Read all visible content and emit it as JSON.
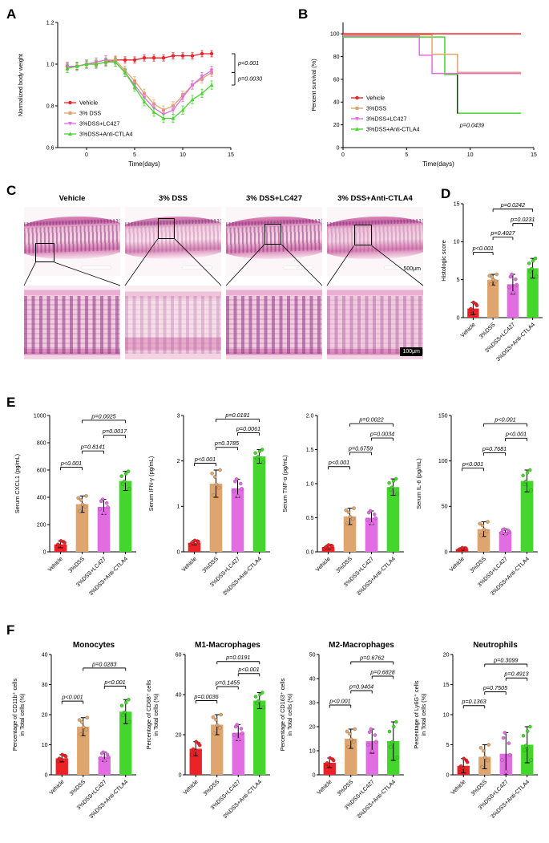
{
  "figure": {
    "panel_labels": [
      "A",
      "B",
      "C",
      "D",
      "E",
      "F"
    ],
    "groups": [
      {
        "label": "Vehicle",
        "color": "#EB2227"
      },
      {
        "label": "3%DSS",
        "color": "#DFA56E"
      },
      {
        "label": "3%DSS+LC427",
        "color": "#E26CE2"
      },
      {
        "label": "3%DSS+Anti-CTLA4",
        "color": "#44D62C"
      }
    ]
  },
  "panelC": {
    "column_titles": [
      "Vehicle",
      "3% DSS",
      "3% DSS+LC427",
      "3% DSS+Anti-CTLA4"
    ],
    "scalebar_top": "500μm",
    "scalebar_bottom": "100μm"
  },
  "chart_data": [
    {
      "id": "bodyweight",
      "type": "line",
      "title": "",
      "xlabel": "Time(days)",
      "ylabel": "Normalized body weight",
      "xlim": [
        -3,
        15
      ],
      "ylim": [
        0.6,
        1.2
      ],
      "xticks": [
        0,
        5,
        10,
        15
      ],
      "yticks": [
        0.6,
        0.8,
        1,
        1.2
      ],
      "ytick_labels": [
        "0.6",
        "0.8",
        "1.0",
        "1.2"
      ],
      "m": {
        "l": 54,
        "r": 62,
        "t": 14,
        "b": 38
      },
      "x": [
        -2,
        -1,
        0,
        1,
        2,
        3,
        4,
        5,
        6,
        7,
        8,
        9,
        10,
        11,
        12,
        13
      ],
      "series": [
        {
          "name": "Vehicle",
          "marker": "circle",
          "err": 0.015,
          "values": [
            0.99,
            0.99,
            1,
            1,
            1.01,
            1.02,
            1.02,
            1.02,
            1.03,
            1.03,
            1.03,
            1.04,
            1.04,
            1.04,
            1.05,
            1.05
          ]
        },
        {
          "name": "3% DSS",
          "marker": "square",
          "err": 0.02,
          "values": [
            0.98,
            0.99,
            1,
            1.01,
            1.02,
            1.02,
            0.97,
            0.92,
            0.86,
            0.81,
            0.78,
            0.8,
            0.85,
            0.9,
            0.93,
            0.96
          ]
        },
        {
          "name": "3%DSS+LC427",
          "marker": "triangle-down",
          "err": 0.02,
          "values": [
            0.99,
            0.99,
            1,
            1.01,
            1.02,
            1.01,
            0.96,
            0.9,
            0.84,
            0.79,
            0.76,
            0.78,
            0.84,
            0.9,
            0.94,
            0.97
          ]
        },
        {
          "name": "3%DSS+Anti-CTLA4",
          "marker": "triangle-up",
          "err": 0.02,
          "values": [
            0.98,
            0.99,
            1,
            1,
            1.01,
            1.01,
            0.96,
            0.89,
            0.82,
            0.77,
            0.74,
            0.74,
            0.78,
            0.83,
            0.86,
            0.9
          ]
        }
      ],
      "right_brackets": [
        {
          "y_top": 1.05,
          "y_bottom": 0.96,
          "label": "p<0.001"
        },
        {
          "y_top": 0.96,
          "y_bottom": 0.9,
          "label": "p=0.0030"
        }
      ],
      "legend": {
        "items": [
          "Vehicle",
          "3% DSS",
          "3%DSS+LC427",
          "3%DSS+Anti-CTLA4"
        ]
      }
    },
    {
      "id": "survival",
      "type": "step",
      "xlabel": "Time(days)",
      "ylabel": "Percent survival (%)",
      "xlim": [
        0,
        15
      ],
      "ylim": [
        0,
        110
      ],
      "xticks": [
        0,
        5,
        10,
        15
      ],
      "yticks": [
        0,
        20,
        40,
        60,
        80,
        100
      ],
      "m": {
        "l": 44,
        "r": 16,
        "t": 14,
        "b": 38
      },
      "series": [
        {
          "name": "Vehicle",
          "points": [
            [
              0,
              100
            ],
            [
              14,
              100
            ]
          ]
        },
        {
          "name": "3%DSS",
          "points": [
            [
              0,
              100
            ],
            [
              7,
              100
            ],
            [
              7,
              83
            ],
            [
              9,
              83
            ],
            [
              9,
              67
            ],
            [
              14,
              67
            ]
          ]
        },
        {
          "name": "3%DSS+LC427",
          "points": [
            [
              0,
              100
            ],
            [
              6,
              100
            ],
            [
              6,
              83
            ],
            [
              7,
              83
            ],
            [
              7,
              67
            ],
            [
              14,
              67
            ]
          ]
        },
        {
          "name": "3%DSS+Anti-CTLA4",
          "points": [
            [
              0,
              100
            ],
            [
              8,
              100
            ],
            [
              8,
              67
            ],
            [
              9,
              67
            ],
            [
              9,
              33
            ],
            [
              14,
              33
            ]
          ]
        }
      ],
      "annotation": {
        "x": 9,
        "y1": 30,
        "y2": 64,
        "label": "p=0.0439",
        "label_y": 18
      },
      "legend": {
        "items": [
          "Vehicle",
          "3%DSS",
          "3%DSS+LC427",
          "3%DSS+Anti-CTLA4"
        ]
      }
    },
    {
      "id": "histoscore",
      "type": "bar",
      "ylabel": "Histologic score",
      "ylim": [
        0,
        15
      ],
      "yticks": [
        0,
        5,
        10,
        15
      ],
      "m": {
        "l": 32,
        "r": 8,
        "t": 8,
        "b": 74
      },
      "categories": [
        "Vehicle",
        "3%DSS",
        "3%DSS+LC427",
        "3%DSS+Anti-CTLA4"
      ],
      "values": [
        1.2,
        5,
        4.4,
        6.5
      ],
      "errors": [
        0.8,
        0.7,
        1.3,
        1.3
      ],
      "brackets": [
        {
          "from": 0,
          "to": 1,
          "y": 8.6,
          "label": "p<0.001"
        },
        {
          "from": 1,
          "to": 2,
          "y": 10.6,
          "label": "p=0.4027"
        },
        {
          "from": 2,
          "to": 3,
          "y": 12.4,
          "label": "p=0.0231"
        },
        {
          "from": 1,
          "to": 3,
          "y": 14.3,
          "label": "p=0.0242"
        }
      ]
    },
    {
      "id": "cxcl1",
      "type": "bar",
      "ylabel": "Serum CXCL1 (pg/mL)",
      "ylim": [
        0,
        1000
      ],
      "yticks": [
        0,
        200,
        400,
        600,
        800,
        1000
      ],
      "m": {
        "l": 48,
        "r": 10,
        "t": 10,
        "b": 78
      },
      "categories": [
        "Vehicle",
        "3%DSS",
        "3%DSS+LC427",
        "3%DSS+Anti-CTLA4"
      ],
      "values": [
        55,
        350,
        330,
        520
      ],
      "errors": [
        25,
        60,
        55,
        70
      ],
      "brackets": [
        {
          "from": 0,
          "to": 1,
          "y": 620,
          "label": "p<0.001"
        },
        {
          "from": 1,
          "to": 2,
          "y": 740,
          "label": "p=0.8141"
        },
        {
          "from": 2,
          "to": 3,
          "y": 855,
          "label": "p=0.0017"
        },
        {
          "from": 1,
          "to": 3,
          "y": 965,
          "label": "p=0.0025"
        }
      ]
    },
    {
      "id": "ifng",
      "type": "bar",
      "ylabel": "Serum IFN-γ (pg/mL)",
      "ylim": [
        0,
        3
      ],
      "yticks": [
        0,
        1,
        2,
        3
      ],
      "m": {
        "l": 48,
        "r": 10,
        "t": 10,
        "b": 78
      },
      "categories": [
        "Vehicle",
        "3%DSS",
        "3%DSS+LC427",
        "3%DSS+Anti-CTLA4"
      ],
      "values": [
        0.2,
        1.5,
        1.4,
        2.1
      ],
      "errors": [
        0.05,
        0.3,
        0.2,
        0.15
      ],
      "brackets": [
        {
          "from": 0,
          "to": 1,
          "y": 1.95,
          "label": "p<0.001"
        },
        {
          "from": 1,
          "to": 2,
          "y": 2.3,
          "label": "p=0.3785"
        },
        {
          "from": 2,
          "to": 3,
          "y": 2.62,
          "label": "p=0.0061"
        },
        {
          "from": 1,
          "to": 3,
          "y": 2.92,
          "label": "p=0.0181"
        }
      ]
    },
    {
      "id": "tnfa",
      "type": "bar",
      "ylabel": "Serum TNF-α (pg/mL)",
      "ylim": [
        0,
        2
      ],
      "yticks": [
        0,
        0.5,
        1,
        1.5,
        2
      ],
      "ytick_labels": [
        "0.0",
        "0.5",
        "1.0",
        "1.5",
        "2.0"
      ],
      "m": {
        "l": 48,
        "r": 10,
        "t": 10,
        "b": 78
      },
      "categories": [
        "Vehicle",
        "3%DSS",
        "3%DSS+LC427",
        "3%DSS+Anti-CTLA4"
      ],
      "values": [
        0.07,
        0.52,
        0.5,
        0.95
      ],
      "errors": [
        0.03,
        0.12,
        0.1,
        0.12
      ],
      "brackets": [
        {
          "from": 0,
          "to": 1,
          "y": 1.25,
          "label": "p<0.001"
        },
        {
          "from": 1,
          "to": 2,
          "y": 1.46,
          "label": "p=0.6759"
        },
        {
          "from": 2,
          "to": 3,
          "y": 1.67,
          "label": "p=0.0034"
        },
        {
          "from": 1,
          "to": 3,
          "y": 1.88,
          "label": "p=0.0022"
        }
      ]
    },
    {
      "id": "il6",
      "type": "bar",
      "ylabel": "Serum IL-6 (pg/mL)",
      "ylim": [
        0,
        150
      ],
      "yticks": [
        0,
        50,
        100,
        150
      ],
      "m": {
        "l": 48,
        "r": 10,
        "t": 10,
        "b": 78
      },
      "categories": [
        "Vehicle",
        "3%DSS",
        "3%DSS+LC427",
        "3%DSS+Anti-CTLA4"
      ],
      "values": [
        3,
        25,
        22,
        78
      ],
      "errors": [
        1.5,
        8,
        3,
        12
      ],
      "brackets": [
        {
          "from": 0,
          "to": 1,
          "y": 92,
          "label": "p<0.001"
        },
        {
          "from": 1,
          "to": 2,
          "y": 109,
          "label": "p=0.7681"
        },
        {
          "from": 2,
          "to": 3,
          "y": 125,
          "label": "p<0.001"
        },
        {
          "from": 1,
          "to": 3,
          "y": 141,
          "label": "p<0.001"
        }
      ]
    },
    {
      "id": "monocytes",
      "type": "bar",
      "title": "Monocytes",
      "ylabel": "Percentage of CD11b⁺ cells",
      "ylabel2": "in Total cells (%)",
      "ylim": [
        0,
        40
      ],
      "yticks": [
        0,
        10,
        20,
        30,
        40
      ],
      "m": {
        "l": 50,
        "r": 10,
        "t": 24,
        "b": 78
      },
      "categories": [
        "Vehicle",
        "3%DSS",
        "3%DSS+LC427",
        "3%DSS+Anti-CTLA4"
      ],
      "values": [
        5.5,
        16,
        6,
        21
      ],
      "errors": [
        1.2,
        3,
        1.5,
        4
      ],
      "brackets": [
        {
          "from": 0,
          "to": 1,
          "y": 24.5,
          "label": "p<0.001"
        },
        {
          "from": 2,
          "to": 3,
          "y": 29.5,
          "label": "p<0.001"
        },
        {
          "from": 1,
          "to": 3,
          "y": 35.5,
          "label": "p=0.0283"
        }
      ]
    },
    {
      "id": "m1",
      "type": "bar",
      "title": "M1-Macrophages",
      "ylabel": "Percentage of CD68⁺ cells",
      "ylabel2": "in Total cells (%)",
      "ylim": [
        0,
        60
      ],
      "yticks": [
        0,
        20,
        40,
        60
      ],
      "m": {
        "l": 50,
        "r": 10,
        "t": 24,
        "b": 78
      },
      "categories": [
        "Vehicle",
        "3%DSS",
        "3%DSS+LC427",
        "3%DSS+Anti-CTLA4"
      ],
      "values": [
        13,
        25,
        21,
        37
      ],
      "errors": [
        3.5,
        5,
        4,
        4
      ],
      "brackets": [
        {
          "from": 0,
          "to": 1,
          "y": 37,
          "label": "p=0.0036"
        },
        {
          "from": 1,
          "to": 2,
          "y": 44,
          "label": "p=0.1455"
        },
        {
          "from": 2,
          "to": 3,
          "y": 50.5,
          "label": "p<0.001"
        },
        {
          "from": 1,
          "to": 3,
          "y": 56.5,
          "label": "p=0.0191"
        }
      ]
    },
    {
      "id": "m2",
      "type": "bar",
      "title": "M2-Macrophages",
      "ylabel": "Percentage of CD163⁺ cells",
      "ylabel2": "in Total cells (%)",
      "ylim": [
        0,
        50
      ],
      "yticks": [
        0,
        10,
        20,
        30,
        40,
        50
      ],
      "m": {
        "l": 50,
        "r": 10,
        "t": 24,
        "b": 78
      },
      "categories": [
        "Vehicle",
        "3%DSS",
        "3%DSS+LC427",
        "3%DSS+Anti-CTLA4"
      ],
      "values": [
        5,
        15,
        14,
        14
      ],
      "errors": [
        2,
        4,
        5,
        8
      ],
      "brackets": [
        {
          "from": 0,
          "to": 1,
          "y": 29,
          "label": "p<0.001"
        },
        {
          "from": 1,
          "to": 2,
          "y": 35,
          "label": "p=0.9404"
        },
        {
          "from": 2,
          "to": 3,
          "y": 41,
          "label": "p=0.6828"
        },
        {
          "from": 1,
          "to": 3,
          "y": 47,
          "label": "p=0.6762"
        }
      ]
    },
    {
      "id": "neutrophils",
      "type": "bar",
      "title": "Neutrophils",
      "ylabel": "Percentage of Ly6G⁺ cells",
      "ylabel2": "in Total cells (%)",
      "ylim": [
        0,
        20
      ],
      "yticks": [
        0,
        5,
        10,
        15,
        20
      ],
      "m": {
        "l": 50,
        "r": 10,
        "t": 24,
        "b": 78
      },
      "categories": [
        "Vehicle",
        "3%DSS",
        "3%DSS+LC427",
        "3%DSS+Anti-CTLA4"
      ],
      "values": [
        1.5,
        3,
        3.5,
        5
      ],
      "errors": [
        1.2,
        2,
        3.5,
        3
      ],
      "brackets": [
        {
          "from": 0,
          "to": 1,
          "y": 11.5,
          "label": "p=0.1363"
        },
        {
          "from": 1,
          "to": 2,
          "y": 13.8,
          "label": "p=0.7505"
        },
        {
          "from": 2,
          "to": 3,
          "y": 16.1,
          "label": "p=0.4913"
        },
        {
          "from": 1,
          "to": 3,
          "y": 18.4,
          "label": "p=0.3099"
        }
      ]
    }
  ]
}
